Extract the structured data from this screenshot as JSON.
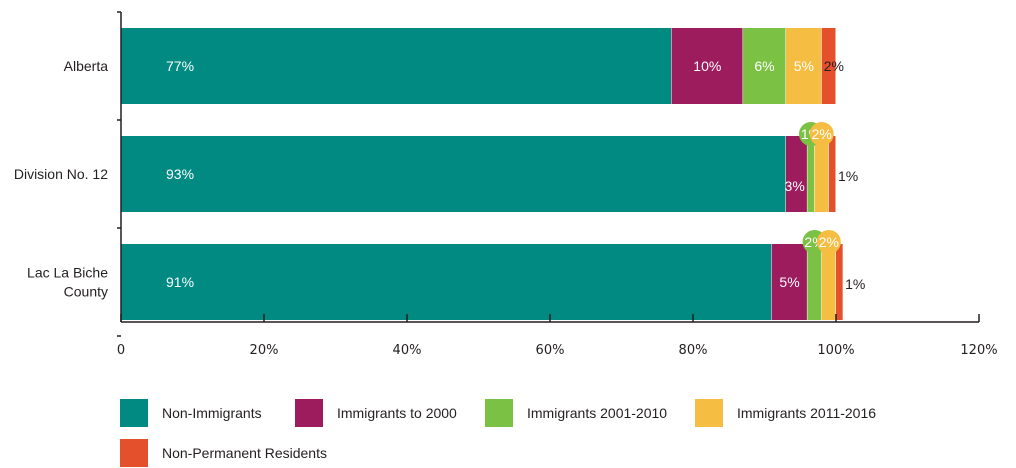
{
  "chart_data": {
    "type": "bar",
    "orientation": "horizontal",
    "stacked": true,
    "categories": [
      "Alberta",
      "Division No. 12",
      "Lac La Biche County"
    ],
    "category_lines": [
      [
        "Alberta"
      ],
      [
        "Division No. 12"
      ],
      [
        "Lac La Biche",
        "County"
      ]
    ],
    "series": [
      {
        "name": "Non-Immigrants",
        "color": "#008a82",
        "values": [
          77,
          93,
          91
        ],
        "labels": [
          "77%",
          "93%",
          "91%"
        ]
      },
      {
        "name": "Immigrants to 2000",
        "color": "#9c1c5e",
        "values": [
          10,
          3,
          5
        ],
        "labels": [
          "10%",
          "3%",
          "5%"
        ]
      },
      {
        "name": "Immigrants 2001-2010",
        "color": "#7bc143",
        "values": [
          6,
          1,
          2
        ],
        "labels": [
          "6%",
          "1%",
          "2%"
        ]
      },
      {
        "name": "Immigrants 2011-2016",
        "color": "#f6bd43",
        "values": [
          5,
          2,
          2
        ],
        "labels": [
          "5%",
          "2%",
          "2%"
        ]
      },
      {
        "name": "Non-Permanent Residents",
        "color": "#e4502b",
        "values": [
          2,
          1,
          1
        ],
        "labels": [
          "2%",
          "1%",
          "1%"
        ]
      }
    ],
    "xlim": [
      0,
      120
    ],
    "x_ticks": [
      0,
      20,
      40,
      60,
      80,
      100,
      120
    ],
    "x_tick_labels": [
      "0",
      "20%",
      "40%",
      "60%",
      "80%",
      "100%",
      "120%"
    ],
    "grid": false,
    "legend_position": "bottom"
  }
}
